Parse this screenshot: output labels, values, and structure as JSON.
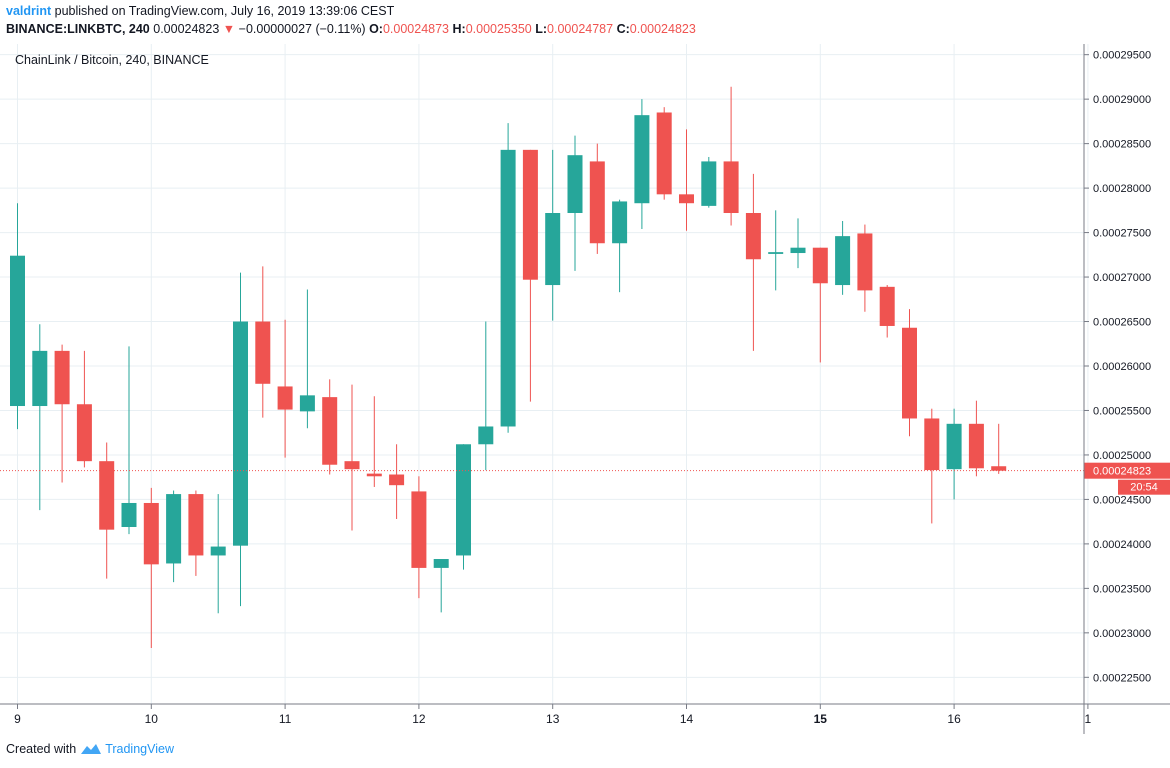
{
  "header": {
    "user": "valdrint",
    "published_text": "published on TradingView.com, July 16, 2019 13:39:06 CEST",
    "symbol": "BINANCE:LINKBTC, 240",
    "last": "0.00024823",
    "change": "−0.00000027 (−0.11%)",
    "o_label": "O:",
    "o": "0.00024873",
    "h_label": "H:",
    "h": "0.00025350",
    "l_label": "L:",
    "l": "0.00024787",
    "c_label": "C:",
    "c": "0.00024823"
  },
  "legend": {
    "title": "ChainLink / Bitcoin, 240, BINANCE"
  },
  "footer": {
    "created_with": "Created with",
    "brand": "TradingView"
  },
  "colors": {
    "up": "#26a69a",
    "down": "#ef5350",
    "grid": "#e8eff3",
    "axis": "#787b86"
  },
  "chart_data": {
    "type": "candlestick",
    "title": "ChainLink / Bitcoin, 240, BINANCE",
    "ylim": [
      0.000222,
      0.0002962
    ],
    "y_ticks": [
      "0.00022500",
      "0.00023000",
      "0.00023500",
      "0.00024000",
      "0.00024500",
      "0.00025000",
      "0.00025500",
      "0.00026000",
      "0.00026500",
      "0.00027000",
      "0.00027500",
      "0.00028000",
      "0.00028500",
      "0.00029000",
      "0.00029500"
    ],
    "x_ticks": [
      {
        "label": "9",
        "pos": 0,
        "bold": false
      },
      {
        "label": "10",
        "pos": 6,
        "bold": false
      },
      {
        "label": "11",
        "pos": 12,
        "bold": false
      },
      {
        "label": "12",
        "pos": 18,
        "bold": false
      },
      {
        "label": "13",
        "pos": 24,
        "bold": false
      },
      {
        "label": "14",
        "pos": 30,
        "bold": false
      },
      {
        "label": "15",
        "pos": 36,
        "bold": true
      },
      {
        "label": "16",
        "pos": 42,
        "bold": false
      },
      {
        "label": "1",
        "pos": 48,
        "bold": false
      }
    ],
    "last_price": {
      "value": 0.00024823,
      "label": "0.00024823",
      "countdown": "20:54"
    },
    "candles": [
      {
        "o": 0.0002555,
        "h": 0.0002783,
        "l": 0.0002529,
        "c": 0.0002724
      },
      {
        "o": 0.0002555,
        "h": 0.0002647,
        "l": 0.0002438,
        "c": 0.0002617
      },
      {
        "o": 0.0002617,
        "h": 0.0002624,
        "l": 0.0002469,
        "c": 0.0002557
      },
      {
        "o": 0.0002557,
        "h": 0.0002617,
        "l": 0.0002486,
        "c": 0.0002493
      },
      {
        "o": 0.0002493,
        "h": 0.0002514,
        "l": 0.0002361,
        "c": 0.0002416
      },
      {
        "o": 0.0002419,
        "h": 0.0002622,
        "l": 0.0002411,
        "c": 0.0002446
      },
      {
        "o": 0.0002446,
        "h": 0.0002463,
        "l": 0.0002283,
        "c": 0.0002377
      },
      {
        "o": 0.0002378,
        "h": 0.000246,
        "l": 0.0002357,
        "c": 0.0002456
      },
      {
        "o": 0.0002456,
        "h": 0.000246,
        "l": 0.0002364,
        "c": 0.0002387
      },
      {
        "o": 0.0002387,
        "h": 0.0002456,
        "l": 0.0002322,
        "c": 0.0002397
      },
      {
        "o": 0.0002398,
        "h": 0.0002705,
        "l": 0.000233,
        "c": 0.000265
      },
      {
        "o": 0.000265,
        "h": 0.0002712,
        "l": 0.0002542,
        "c": 0.000258
      },
      {
        "o": 0.0002577,
        "h": 0.0002652,
        "l": 0.0002497,
        "c": 0.0002551
      },
      {
        "o": 0.0002549,
        "h": 0.0002686,
        "l": 0.000253,
        "c": 0.0002567
      },
      {
        "o": 0.0002565,
        "h": 0.0002585,
        "l": 0.0002478,
        "c": 0.0002489
      },
      {
        "o": 0.0002493,
        "h": 0.0002579,
        "l": 0.0002415,
        "c": 0.0002484
      },
      {
        "o": 0.0002479,
        "h": 0.0002566,
        "l": 0.0002464,
        "c": 0.0002476
      },
      {
        "o": 0.0002478,
        "h": 0.0002512,
        "l": 0.0002428,
        "c": 0.0002466
      },
      {
        "o": 0.0002459,
        "h": 0.0002476,
        "l": 0.0002339,
        "c": 0.0002373
      },
      {
        "o": 0.0002373,
        "h": 0.000238,
        "l": 0.0002323,
        "c": 0.0002383
      },
      {
        "o": 0.0002387,
        "h": 0.0002512,
        "l": 0.0002371,
        "c": 0.0002512
      },
      {
        "o": 0.0002512,
        "h": 0.000265,
        "l": 0.0002483,
        "c": 0.0002532
      },
      {
        "o": 0.0002532,
        "h": 0.0002873,
        "l": 0.0002525,
        "c": 0.0002843
      },
      {
        "o": 0.0002843,
        "h": 0.0002843,
        "l": 0.000256,
        "c": 0.0002697
      },
      {
        "o": 0.0002691,
        "h": 0.0002843,
        "l": 0.0002651,
        "c": 0.0002772
      },
      {
        "o": 0.0002772,
        "h": 0.0002859,
        "l": 0.0002707,
        "c": 0.0002837
      },
      {
        "o": 0.000283,
        "h": 0.000285,
        "l": 0.0002726,
        "c": 0.0002738
      },
      {
        "o": 0.0002738,
        "h": 0.0002787,
        "l": 0.0002683,
        "c": 0.0002785
      },
      {
        "o": 0.0002783,
        "h": 0.00029,
        "l": 0.0002754,
        "c": 0.0002882
      },
      {
        "o": 0.0002885,
        "h": 0.0002891,
        "l": 0.0002787,
        "c": 0.0002793
      },
      {
        "o": 0.0002793,
        "h": 0.0002866,
        "l": 0.0002752,
        "c": 0.0002783
      },
      {
        "o": 0.000278,
        "h": 0.0002835,
        "l": 0.0002778,
        "c": 0.000283
      },
      {
        "o": 0.000283,
        "h": 0.0002914,
        "l": 0.0002758,
        "c": 0.0002772
      },
      {
        "o": 0.0002772,
        "h": 0.0002816,
        "l": 0.0002617,
        "c": 0.000272
      },
      {
        "o": 0.0002726,
        "h": 0.0002775,
        "l": 0.0002685,
        "c": 0.0002728
      },
      {
        "o": 0.0002727,
        "h": 0.0002766,
        "l": 0.000271,
        "c": 0.0002733
      },
      {
        "o": 0.0002733,
        "h": 0.0002733,
        "l": 0.0002604,
        "c": 0.0002693
      },
      {
        "o": 0.0002691,
        "h": 0.0002763,
        "l": 0.000268,
        "c": 0.0002746
      },
      {
        "o": 0.0002749,
        "h": 0.0002759,
        "l": 0.0002661,
        "c": 0.0002685
      },
      {
        "o": 0.0002689,
        "h": 0.0002691,
        "l": 0.0002632,
        "c": 0.0002645
      },
      {
        "o": 0.0002643,
        "h": 0.0002664,
        "l": 0.0002521,
        "c": 0.0002541
      },
      {
        "o": 0.0002541,
        "h": 0.0002552,
        "l": 0.0002423,
        "c": 0.0002483
      },
      {
        "o": 0.0002484,
        "h": 0.0002552,
        "l": 0.000245,
        "c": 0.0002535
      },
      {
        "o": 0.0002535,
        "h": 0.0002561,
        "l": 0.0002476,
        "c": 0.0002485
      },
      {
        "o": 0.00024873,
        "h": 0.0002535,
        "l": 0.00024787,
        "c": 0.00024823
      }
    ]
  }
}
